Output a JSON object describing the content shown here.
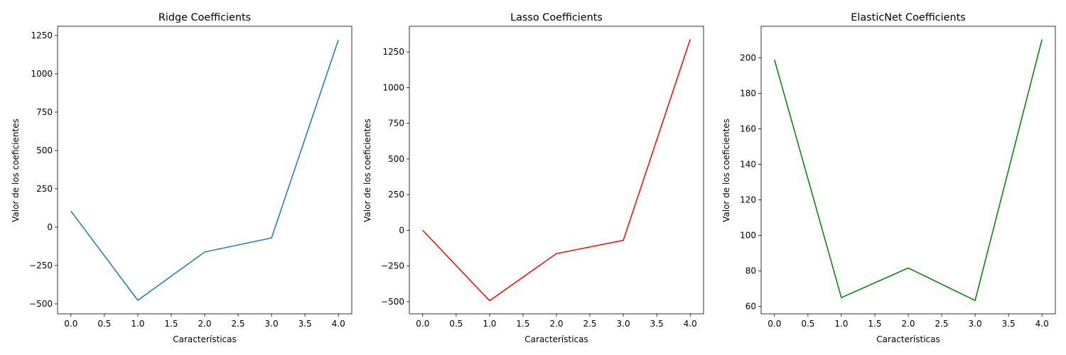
{
  "chart_data": [
    {
      "type": "line",
      "title": "Ridge Coefficients",
      "xlabel": "Características",
      "ylabel": "Valor de los coeficientes",
      "color": "#1f77b4",
      "x": [
        0,
        1,
        2,
        3,
        4
      ],
      "y": [
        105,
        -477,
        -162,
        -70,
        1222
      ],
      "xlim": [
        -0.2,
        4.2
      ],
      "ylim": [
        -565,
        1310
      ],
      "xticks": [
        "0.0",
        "0.5",
        "1.0",
        "1.5",
        "2.0",
        "2.5",
        "3.0",
        "3.5",
        "4.0"
      ],
      "yticks": [
        "−500",
        "−250",
        "0",
        "250",
        "500",
        "750",
        "1000",
        "1250"
      ],
      "grid": false
    },
    {
      "type": "line",
      "title": "Lasso Coefficients",
      "xlabel": "Características",
      "ylabel": "Valor de los coeficientes",
      "color": "#ff0000",
      "x": [
        0,
        1,
        2,
        3,
        4
      ],
      "y": [
        0,
        -493,
        -163,
        -70,
        1338
      ],
      "xlim": [
        -0.2,
        4.2
      ],
      "ylim": [
        -585,
        1430
      ],
      "xticks": [
        "0.0",
        "0.5",
        "1.0",
        "1.5",
        "2.0",
        "2.5",
        "3.0",
        "3.5",
        "4.0"
      ],
      "yticks": [
        "−500",
        "−250",
        "0",
        "250",
        "500",
        "750",
        "1000",
        "1250"
      ],
      "grid": false
    },
    {
      "type": "line",
      "title": "ElasticNet Coefficients",
      "xlabel": "Características",
      "ylabel": "Valor de los coeficientes",
      "color": "#008000",
      "x": [
        0,
        1,
        2,
        3,
        4
      ],
      "y": [
        198.8,
        65,
        81.7,
        63.4,
        210.3
      ],
      "xlim": [
        -0.2,
        4.2
      ],
      "ylim": [
        55.9,
        217.7
      ],
      "xticks": [
        "0.0",
        "0.5",
        "1.0",
        "1.5",
        "2.0",
        "2.5",
        "3.0",
        "3.5",
        "4.0"
      ],
      "yticks": [
        "60",
        "80",
        "100",
        "120",
        "140",
        "160",
        "180",
        "200"
      ],
      "grid": false
    }
  ]
}
